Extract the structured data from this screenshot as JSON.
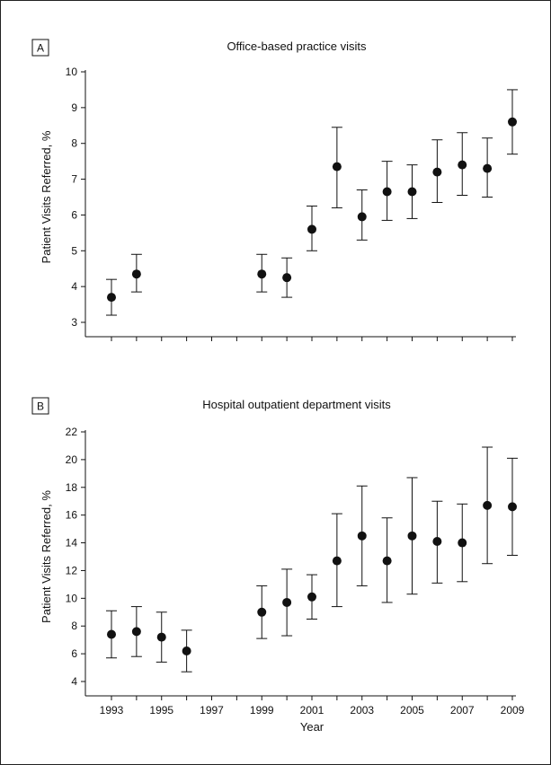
{
  "chart_data": [
    {
      "panel": "A",
      "type": "scatter",
      "title": "Office-based practice visits",
      "xlabel": "",
      "ylabel": "Patient Visits Referred, %",
      "ylim": [
        3,
        10
      ],
      "yticks": [
        3,
        4,
        5,
        6,
        7,
        8,
        9,
        10
      ],
      "xlim": [
        1993,
        2009
      ],
      "points": [
        {
          "x": 1993,
          "y": 3.7,
          "low": 3.2,
          "high": 4.2
        },
        {
          "x": 1994,
          "y": 4.35,
          "low": 3.85,
          "high": 4.9
        },
        {
          "x": 1999,
          "y": 4.35,
          "low": 3.85,
          "high": 4.9
        },
        {
          "x": 2000,
          "y": 4.25,
          "low": 3.7,
          "high": 4.8
        },
        {
          "x": 2001,
          "y": 5.6,
          "low": 5.0,
          "high": 6.25
        },
        {
          "x": 2002,
          "y": 7.35,
          "low": 6.2,
          "high": 8.45
        },
        {
          "x": 2003,
          "y": 5.95,
          "low": 5.3,
          "high": 6.7
        },
        {
          "x": 2004,
          "y": 6.65,
          "low": 5.85,
          "high": 7.5
        },
        {
          "x": 2005,
          "y": 6.65,
          "low": 5.9,
          "high": 7.4
        },
        {
          "x": 2006,
          "y": 7.2,
          "low": 6.35,
          "high": 8.1
        },
        {
          "x": 2007,
          "y": 7.4,
          "low": 6.55,
          "high": 8.3
        },
        {
          "x": 2008,
          "y": 7.3,
          "low": 6.5,
          "high": 8.15
        },
        {
          "x": 2009,
          "y": 8.6,
          "low": 7.7,
          "high": 9.5
        }
      ]
    },
    {
      "panel": "B",
      "type": "scatter",
      "title": "Hospital outpatient department visits",
      "xlabel": "Year",
      "ylabel": "Patient Visits Referred, %",
      "ylim": [
        4,
        22
      ],
      "yticks": [
        4,
        6,
        8,
        10,
        12,
        14,
        16,
        18,
        20,
        22
      ],
      "xlim": [
        1993,
        2009
      ],
      "xticks": [
        1993,
        1995,
        1997,
        1999,
        2001,
        2003,
        2005,
        2007,
        2009
      ],
      "points": [
        {
          "x": 1993,
          "y": 7.4,
          "low": 5.7,
          "high": 9.1
        },
        {
          "x": 1994,
          "y": 7.6,
          "low": 5.8,
          "high": 9.4
        },
        {
          "x": 1995,
          "y": 7.2,
          "low": 5.4,
          "high": 9.0
        },
        {
          "x": 1996,
          "y": 6.2,
          "low": 4.7,
          "high": 7.7
        },
        {
          "x": 1999,
          "y": 9.0,
          "low": 7.1,
          "high": 10.9
        },
        {
          "x": 2000,
          "y": 9.7,
          "low": 7.3,
          "high": 12.1
        },
        {
          "x": 2001,
          "y": 10.1,
          "low": 8.5,
          "high": 11.7
        },
        {
          "x": 2002,
          "y": 12.7,
          "low": 9.4,
          "high": 16.1
        },
        {
          "x": 2003,
          "y": 14.5,
          "low": 10.9,
          "high": 18.1
        },
        {
          "x": 2004,
          "y": 12.7,
          "low": 9.7,
          "high": 15.8
        },
        {
          "x": 2005,
          "y": 14.5,
          "low": 10.3,
          "high": 18.7
        },
        {
          "x": 2006,
          "y": 14.1,
          "low": 11.1,
          "high": 17.0
        },
        {
          "x": 2007,
          "y": 14.0,
          "low": 11.2,
          "high": 16.8
        },
        {
          "x": 2008,
          "y": 16.7,
          "low": 12.5,
          "high": 20.9
        },
        {
          "x": 2009,
          "y": 16.6,
          "low": 13.1,
          "high": 20.1
        }
      ]
    }
  ]
}
